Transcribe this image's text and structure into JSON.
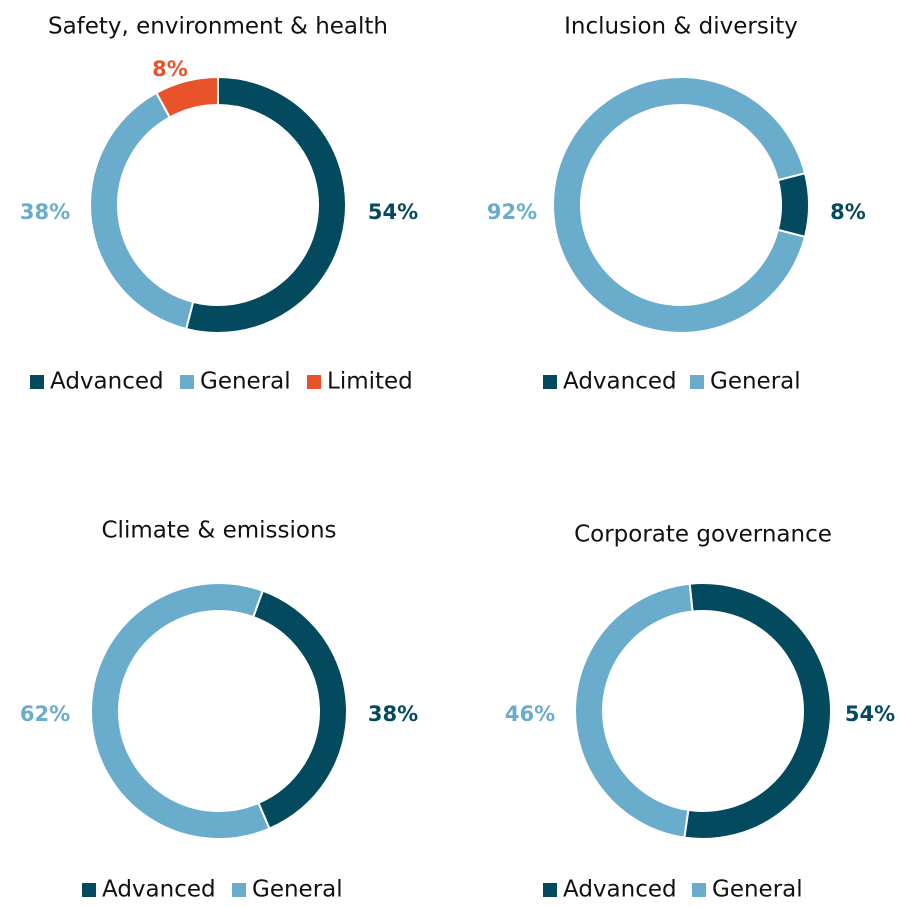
{
  "chart_data": [
    {
      "type": "pie",
      "title": "Safety, environment & health",
      "categories": [
        "Advanced",
        "General",
        "Limited"
      ],
      "values": [
        54,
        38,
        8
      ],
      "value_labels": [
        "54%",
        "38%",
        "8%"
      ],
      "colors": [
        "#034a5e",
        "#6aaccb",
        "#e8532a"
      ]
    },
    {
      "type": "pie",
      "title": "Inclusion & diversity",
      "categories": [
        "Advanced",
        "General"
      ],
      "values": [
        8,
        92
      ],
      "value_labels": [
        "8%",
        "92%"
      ],
      "colors": [
        "#034a5e",
        "#6aaccb"
      ]
    },
    {
      "type": "pie",
      "title": "Climate & emissions",
      "categories": [
        "Advanced",
        "General"
      ],
      "values": [
        38,
        62
      ],
      "value_labels": [
        "38%",
        "62%"
      ],
      "colors": [
        "#034a5e",
        "#6aaccb"
      ]
    },
    {
      "type": "pie",
      "title": "Corporate governance",
      "categories": [
        "Advanced",
        "General"
      ],
      "values": [
        54,
        46
      ],
      "value_labels": [
        "54%",
        "46%"
      ],
      "colors": [
        "#034a5e",
        "#6aaccb"
      ]
    }
  ]
}
